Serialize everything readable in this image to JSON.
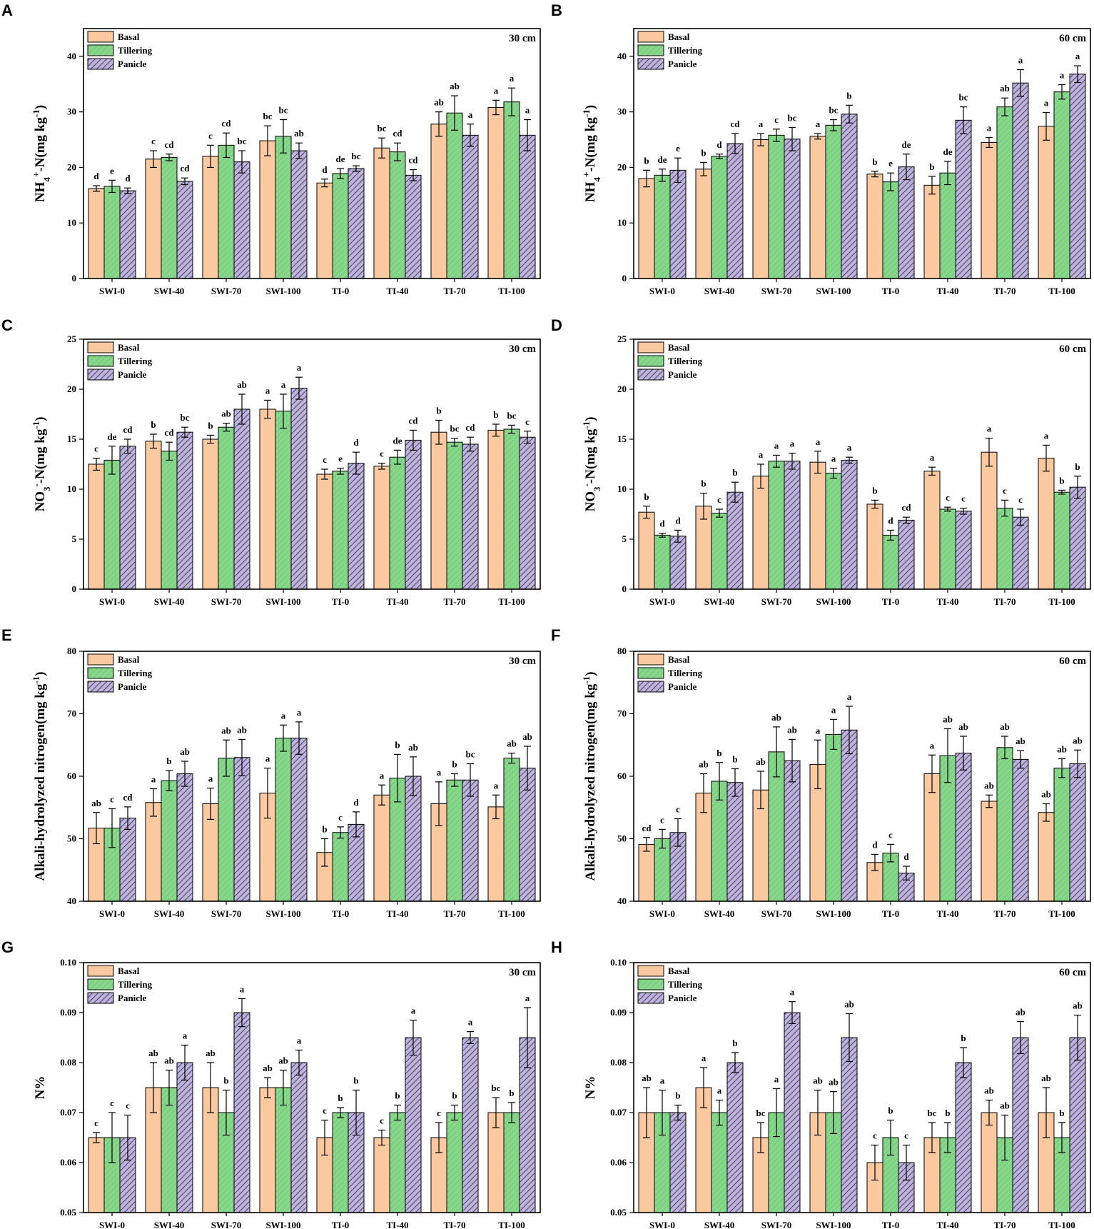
{
  "colors": {
    "basal": "#FBC9A0",
    "tillering": "#86D88A",
    "panicle": "#BDB2E2",
    "hatch": "#4a4a4a"
  },
  "legend": [
    "Basal",
    "Tillering",
    "Panicle"
  ],
  "chart_data": [
    {
      "type": "bar",
      "panel": "A",
      "depth": "30 cm",
      "ylabel": "NH4+-N(mg kg-1)",
      "ylim": [
        0,
        45
      ],
      "yticks": [
        0,
        10,
        20,
        30,
        40
      ],
      "categories": [
        "SWI-0",
        "SWI-40",
        "SWI-70",
        "SWI-100",
        "TI-0",
        "TI-40",
        "TI-70",
        "TI-100"
      ],
      "series": [
        {
          "name": "Basal",
          "values": [
            16.2,
            21.5,
            22.0,
            24.8,
            17.2,
            23.5,
            27.8,
            30.8
          ],
          "errors": [
            0.5,
            1.5,
            2.0,
            2.7,
            0.7,
            1.8,
            2.2,
            1.3
          ],
          "labels": [
            "d",
            "c",
            "c",
            "bc",
            "d",
            "bc",
            "ab",
            "a"
          ]
        },
        {
          "name": "Tillering",
          "values": [
            16.6,
            21.8,
            24.0,
            25.6,
            18.9,
            22.8,
            29.8,
            31.8
          ],
          "errors": [
            1.1,
            0.6,
            2.2,
            3.0,
            0.9,
            1.6,
            3.1,
            2.5
          ],
          "labels": [
            "e",
            "cd",
            "cd",
            "bc",
            "de",
            "cd",
            "ab",
            "a"
          ]
        },
        {
          "name": "Panicle",
          "values": [
            15.8,
            17.5,
            21.0,
            23.0,
            19.8,
            18.6,
            25.8,
            25.8
          ],
          "errors": [
            0.5,
            0.6,
            2.0,
            1.4,
            0.5,
            1.0,
            2.0,
            2.8
          ],
          "labels": [
            "d",
            "cd",
            "bc",
            "ab",
            "bc",
            "cd",
            "a",
            "a"
          ]
        }
      ]
    },
    {
      "type": "bar",
      "panel": "B",
      "depth": "60 cm",
      "ylabel": "NH4+-N(mg kg-1)",
      "ylim": [
        0,
        45
      ],
      "yticks": [
        0,
        10,
        20,
        30,
        40
      ],
      "categories": [
        "SWI-0",
        "SWI-40",
        "SWI-70",
        "SWI-100",
        "TI-0",
        "TI-40",
        "TI-70",
        "TI-100"
      ],
      "series": [
        {
          "name": "Basal",
          "values": [
            18.0,
            19.7,
            25.0,
            25.6,
            18.8,
            16.8,
            24.5,
            27.4
          ],
          "errors": [
            1.5,
            1.2,
            1.1,
            0.5,
            0.5,
            1.6,
            0.9,
            2.5
          ],
          "labels": [
            "b",
            "b",
            "a",
            "a",
            "b",
            "b",
            "a",
            "a"
          ]
        },
        {
          "name": "Tillering",
          "values": [
            18.6,
            22.0,
            25.8,
            27.6,
            17.4,
            19.0,
            30.9,
            33.6
          ],
          "errors": [
            1.1,
            0.4,
            1.1,
            1.0,
            1.6,
            2.1,
            1.6,
            1.3
          ],
          "labels": [
            "de",
            "d",
            "c",
            "bc",
            "e",
            "de",
            "ab",
            "a"
          ]
        },
        {
          "name": "Panicle",
          "values": [
            19.5,
            24.3,
            25.1,
            29.6,
            20.1,
            28.5,
            35.2,
            36.8
          ],
          "errors": [
            2.2,
            1.8,
            2.1,
            1.6,
            2.3,
            2.4,
            2.4,
            1.5
          ],
          "labels": [
            "e",
            "cd",
            "bc",
            "b",
            "de",
            "bc",
            "a",
            "a"
          ]
        }
      ]
    },
    {
      "type": "bar",
      "panel": "C",
      "depth": "30 cm",
      "ylabel": "NO3--N(mg kg-1)",
      "ylim": [
        0,
        25
      ],
      "yticks": [
        0,
        5,
        10,
        15,
        20,
        25
      ],
      "categories": [
        "SWI-0",
        "SWI-40",
        "SWI-70",
        "SWI-100",
        "TI-0",
        "TI-40",
        "TI-70",
        "TI-100"
      ],
      "series": [
        {
          "name": "Basal",
          "values": [
            12.5,
            14.8,
            15.0,
            18.0,
            11.5,
            12.3,
            15.7,
            15.9
          ],
          "errors": [
            0.6,
            0.7,
            0.4,
            0.9,
            0.5,
            0.3,
            1.2,
            0.6
          ],
          "labels": [
            "c",
            "b",
            "b",
            "a",
            "c",
            "c",
            "b",
            "b"
          ]
        },
        {
          "name": "Tillering",
          "values": [
            12.9,
            13.8,
            16.2,
            17.8,
            11.8,
            13.2,
            14.7,
            16.0
          ],
          "errors": [
            1.4,
            0.9,
            0.4,
            1.7,
            0.3,
            0.7,
            0.4,
            0.4
          ],
          "labels": [
            "de",
            "cd",
            "ab",
            "a",
            "e",
            "de",
            "bc",
            "bc"
          ]
        },
        {
          "name": "Panicle",
          "values": [
            14.3,
            15.7,
            18.0,
            20.1,
            12.6,
            14.9,
            14.5,
            15.2
          ],
          "errors": [
            0.7,
            0.5,
            1.5,
            1.1,
            1.1,
            1.0,
            0.7,
            0.6
          ],
          "labels": [
            "cd",
            "bc",
            "ab",
            "a",
            "d",
            "cd",
            "cd",
            "c"
          ]
        }
      ]
    },
    {
      "type": "bar",
      "panel": "D",
      "depth": "60 cm",
      "ylabel": "NO3--N(mg kg-1)",
      "ylim": [
        0,
        25
      ],
      "yticks": [
        0,
        5,
        10,
        15,
        20,
        25
      ],
      "categories": [
        "SWI-0",
        "SWI-40",
        "SWI-70",
        "SWI-100",
        "TI-0",
        "TI-40",
        "TI-70",
        "TI-100"
      ],
      "series": [
        {
          "name": "Basal",
          "values": [
            7.7,
            8.3,
            11.3,
            12.7,
            8.5,
            11.8,
            13.7,
            13.1
          ],
          "errors": [
            0.6,
            1.3,
            1.2,
            1.1,
            0.4,
            0.4,
            1.4,
            1.3
          ],
          "labels": [
            "b",
            "b",
            "a",
            "a",
            "b",
            "a",
            "a",
            "a"
          ]
        },
        {
          "name": "Tillering",
          "values": [
            5.4,
            7.6,
            12.8,
            11.6,
            5.4,
            8.0,
            8.1,
            9.7
          ],
          "errors": [
            0.2,
            0.4,
            0.6,
            0.5,
            0.5,
            0.2,
            0.8,
            0.2
          ],
          "labels": [
            "d",
            "c",
            "a",
            "a",
            "d",
            "c",
            "c",
            "b"
          ]
        },
        {
          "name": "Panicle",
          "values": [
            5.3,
            9.7,
            12.8,
            12.9,
            6.9,
            7.8,
            7.2,
            10.2
          ],
          "errors": [
            0.6,
            1.0,
            0.8,
            0.3,
            0.3,
            0.3,
            0.8,
            1.1
          ],
          "labels": [
            "d",
            "b",
            "a",
            "a",
            "cd",
            "c",
            "c",
            "b"
          ]
        }
      ]
    },
    {
      "type": "bar",
      "panel": "E",
      "depth": "30 cm",
      "ylabel": "Alkali-hydrolyzed nitrogen(mg kg-1)",
      "ylim": [
        40,
        80
      ],
      "yticks": [
        40,
        50,
        60,
        70,
        80
      ],
      "categories": [
        "SWI-0",
        "SWI-40",
        "SWI-70",
        "SWI-100",
        "TI-0",
        "TI-40",
        "TI-70",
        "TI-100"
      ],
      "series": [
        {
          "name": "Basal",
          "values": [
            51.7,
            55.8,
            55.6,
            57.3,
            47.8,
            57.0,
            55.6,
            55.1
          ],
          "errors": [
            2.5,
            2.2,
            2.5,
            4.0,
            2.2,
            1.6,
            3.5,
            1.9
          ],
          "labels": [
            "ab",
            "a",
            "a",
            "a",
            "b",
            "a",
            "a",
            "a"
          ]
        },
        {
          "name": "Tillering",
          "values": [
            51.7,
            59.3,
            62.9,
            66.1,
            51.0,
            59.7,
            59.4,
            62.9
          ],
          "errors": [
            3.1,
            1.6,
            2.9,
            2.1,
            0.9,
            3.8,
            1.0,
            0.8
          ],
          "labels": [
            "c",
            "b",
            "ab",
            "a",
            "c",
            "b",
            "b",
            "ab"
          ]
        },
        {
          "name": "Panicle",
          "values": [
            53.3,
            60.4,
            63.0,
            66.1,
            52.3,
            60.0,
            59.4,
            61.3
          ],
          "errors": [
            1.8,
            2.0,
            2.9,
            2.6,
            2.0,
            3.1,
            2.6,
            3.5
          ],
          "labels": [
            "cd",
            "ab",
            "ab",
            "a",
            "d",
            "ab",
            "bc",
            "ab"
          ]
        }
      ]
    },
    {
      "type": "bar",
      "panel": "F",
      "depth": "60 cm",
      "ylabel": "Alkali-hydrolyzed nitrogen(mg kg-1)",
      "ylim": [
        40,
        80
      ],
      "yticks": [
        40,
        50,
        60,
        70,
        80
      ],
      "categories": [
        "SWI-0",
        "SWI-40",
        "SWI-70",
        "SWI-100",
        "TI-0",
        "TI-40",
        "TI-70",
        "TI-100"
      ],
      "series": [
        {
          "name": "Basal",
          "values": [
            49.1,
            57.3,
            57.8,
            61.9,
            46.2,
            60.4,
            56.0,
            54.2
          ],
          "errors": [
            1.1,
            3.1,
            3.0,
            3.9,
            1.3,
            3.0,
            1.0,
            1.4
          ],
          "labels": [
            "cd",
            "ab",
            "ab",
            "a",
            "d",
            "a",
            "ab",
            "ab"
          ]
        },
        {
          "name": "Tillering",
          "values": [
            50.0,
            59.2,
            63.9,
            66.7,
            47.7,
            63.3,
            64.6,
            61.3
          ],
          "errors": [
            1.5,
            3.0,
            4.0,
            2.4,
            1.4,
            4.3,
            1.8,
            1.5
          ],
          "labels": [
            "c",
            "b",
            "ab",
            "a",
            "c",
            "ab",
            "ab",
            "ab"
          ]
        },
        {
          "name": "Panicle",
          "values": [
            51.0,
            59.0,
            62.5,
            67.4,
            44.5,
            63.7,
            62.7,
            62.0
          ],
          "errors": [
            2.2,
            2.2,
            3.4,
            3.8,
            1.1,
            2.7,
            1.4,
            2.2
          ],
          "labels": [
            "c",
            "b",
            "ab",
            "a",
            "d",
            "ab",
            "ab",
            "ab"
          ]
        }
      ]
    },
    {
      "type": "bar",
      "panel": "G",
      "depth": "30 cm",
      "ylabel": "N%",
      "ylim": [
        0.05,
        0.1
      ],
      "yticks": [
        0.05,
        0.06,
        0.07,
        0.08,
        0.09,
        0.1
      ],
      "categories": [
        "SWI-0",
        "SWI-40",
        "SWI-70",
        "SWI-100",
        "TI-0",
        "TI-40",
        "TI-70",
        "TI-100"
      ],
      "series": [
        {
          "name": "Basal",
          "values": [
            0.065,
            0.075,
            0.075,
            0.075,
            0.065,
            0.065,
            0.065,
            0.07
          ],
          "errors": [
            0.001,
            0.005,
            0.005,
            0.002,
            0.0035,
            0.0015,
            0.003,
            0.003
          ],
          "labels": [
            "c",
            "ab",
            "ab",
            "ab",
            "c",
            "c",
            "c",
            "bc"
          ]
        },
        {
          "name": "Tillering",
          "values": [
            0.065,
            0.075,
            0.07,
            0.075,
            0.07,
            0.07,
            0.07,
            0.07
          ],
          "errors": [
            0.005,
            0.0035,
            0.0045,
            0.0035,
            0.001,
            0.0015,
            0.0015,
            0.002
          ],
          "labels": [
            "c",
            "ab",
            "b",
            "ab",
            "b",
            "b",
            "b",
            "b"
          ]
        },
        {
          "name": "Panicle",
          "values": [
            0.065,
            0.08,
            0.09,
            0.08,
            0.07,
            0.085,
            0.085,
            0.085
          ],
          "errors": [
            0.0045,
            0.0035,
            0.0028,
            0.0025,
            0.0045,
            0.0035,
            0.0012,
            0.006
          ],
          "labels": [
            "c",
            "a",
            "a",
            "a",
            "b",
            "a",
            "a",
            "a"
          ]
        }
      ]
    },
    {
      "type": "bar",
      "panel": "H",
      "depth": "60 cm",
      "ylabel": "N%",
      "ylim": [
        0.05,
        0.1
      ],
      "yticks": [
        0.05,
        0.06,
        0.07,
        0.08,
        0.09,
        0.1
      ],
      "categories": [
        "SWI-0",
        "SWI-40",
        "SWI-70",
        "SWI-100",
        "TI-0",
        "TI-40",
        "TI-70",
        "TI-100"
      ],
      "series": [
        {
          "name": "Basal",
          "values": [
            0.07,
            0.075,
            0.065,
            0.07,
            0.06,
            0.065,
            0.07,
            0.07
          ],
          "errors": [
            0.005,
            0.004,
            0.003,
            0.0045,
            0.0035,
            0.003,
            0.0025,
            0.005
          ],
          "labels": [
            "ab",
            "a",
            "bc",
            "ab",
            "c",
            "bc",
            "ab",
            "ab"
          ]
        },
        {
          "name": "Tillering",
          "values": [
            0.07,
            0.07,
            0.07,
            0.07,
            0.065,
            0.065,
            0.065,
            0.065
          ],
          "errors": [
            0.0045,
            0.0025,
            0.0048,
            0.0042,
            0.0035,
            0.003,
            0.0045,
            0.003
          ],
          "labels": [
            "a",
            "a",
            "a",
            "ab",
            "b",
            "b",
            "ab",
            "b"
          ]
        },
        {
          "name": "Panicle",
          "values": [
            0.07,
            0.08,
            0.09,
            0.085,
            0.06,
            0.08,
            0.085,
            0.085
          ],
          "errors": [
            0.0015,
            0.002,
            0.0022,
            0.0048,
            0.0035,
            0.003,
            0.0032,
            0.0045
          ],
          "labels": [
            "b",
            "b",
            "a",
            "ab",
            "c",
            "b",
            "ab",
            "ab"
          ]
        }
      ]
    }
  ]
}
